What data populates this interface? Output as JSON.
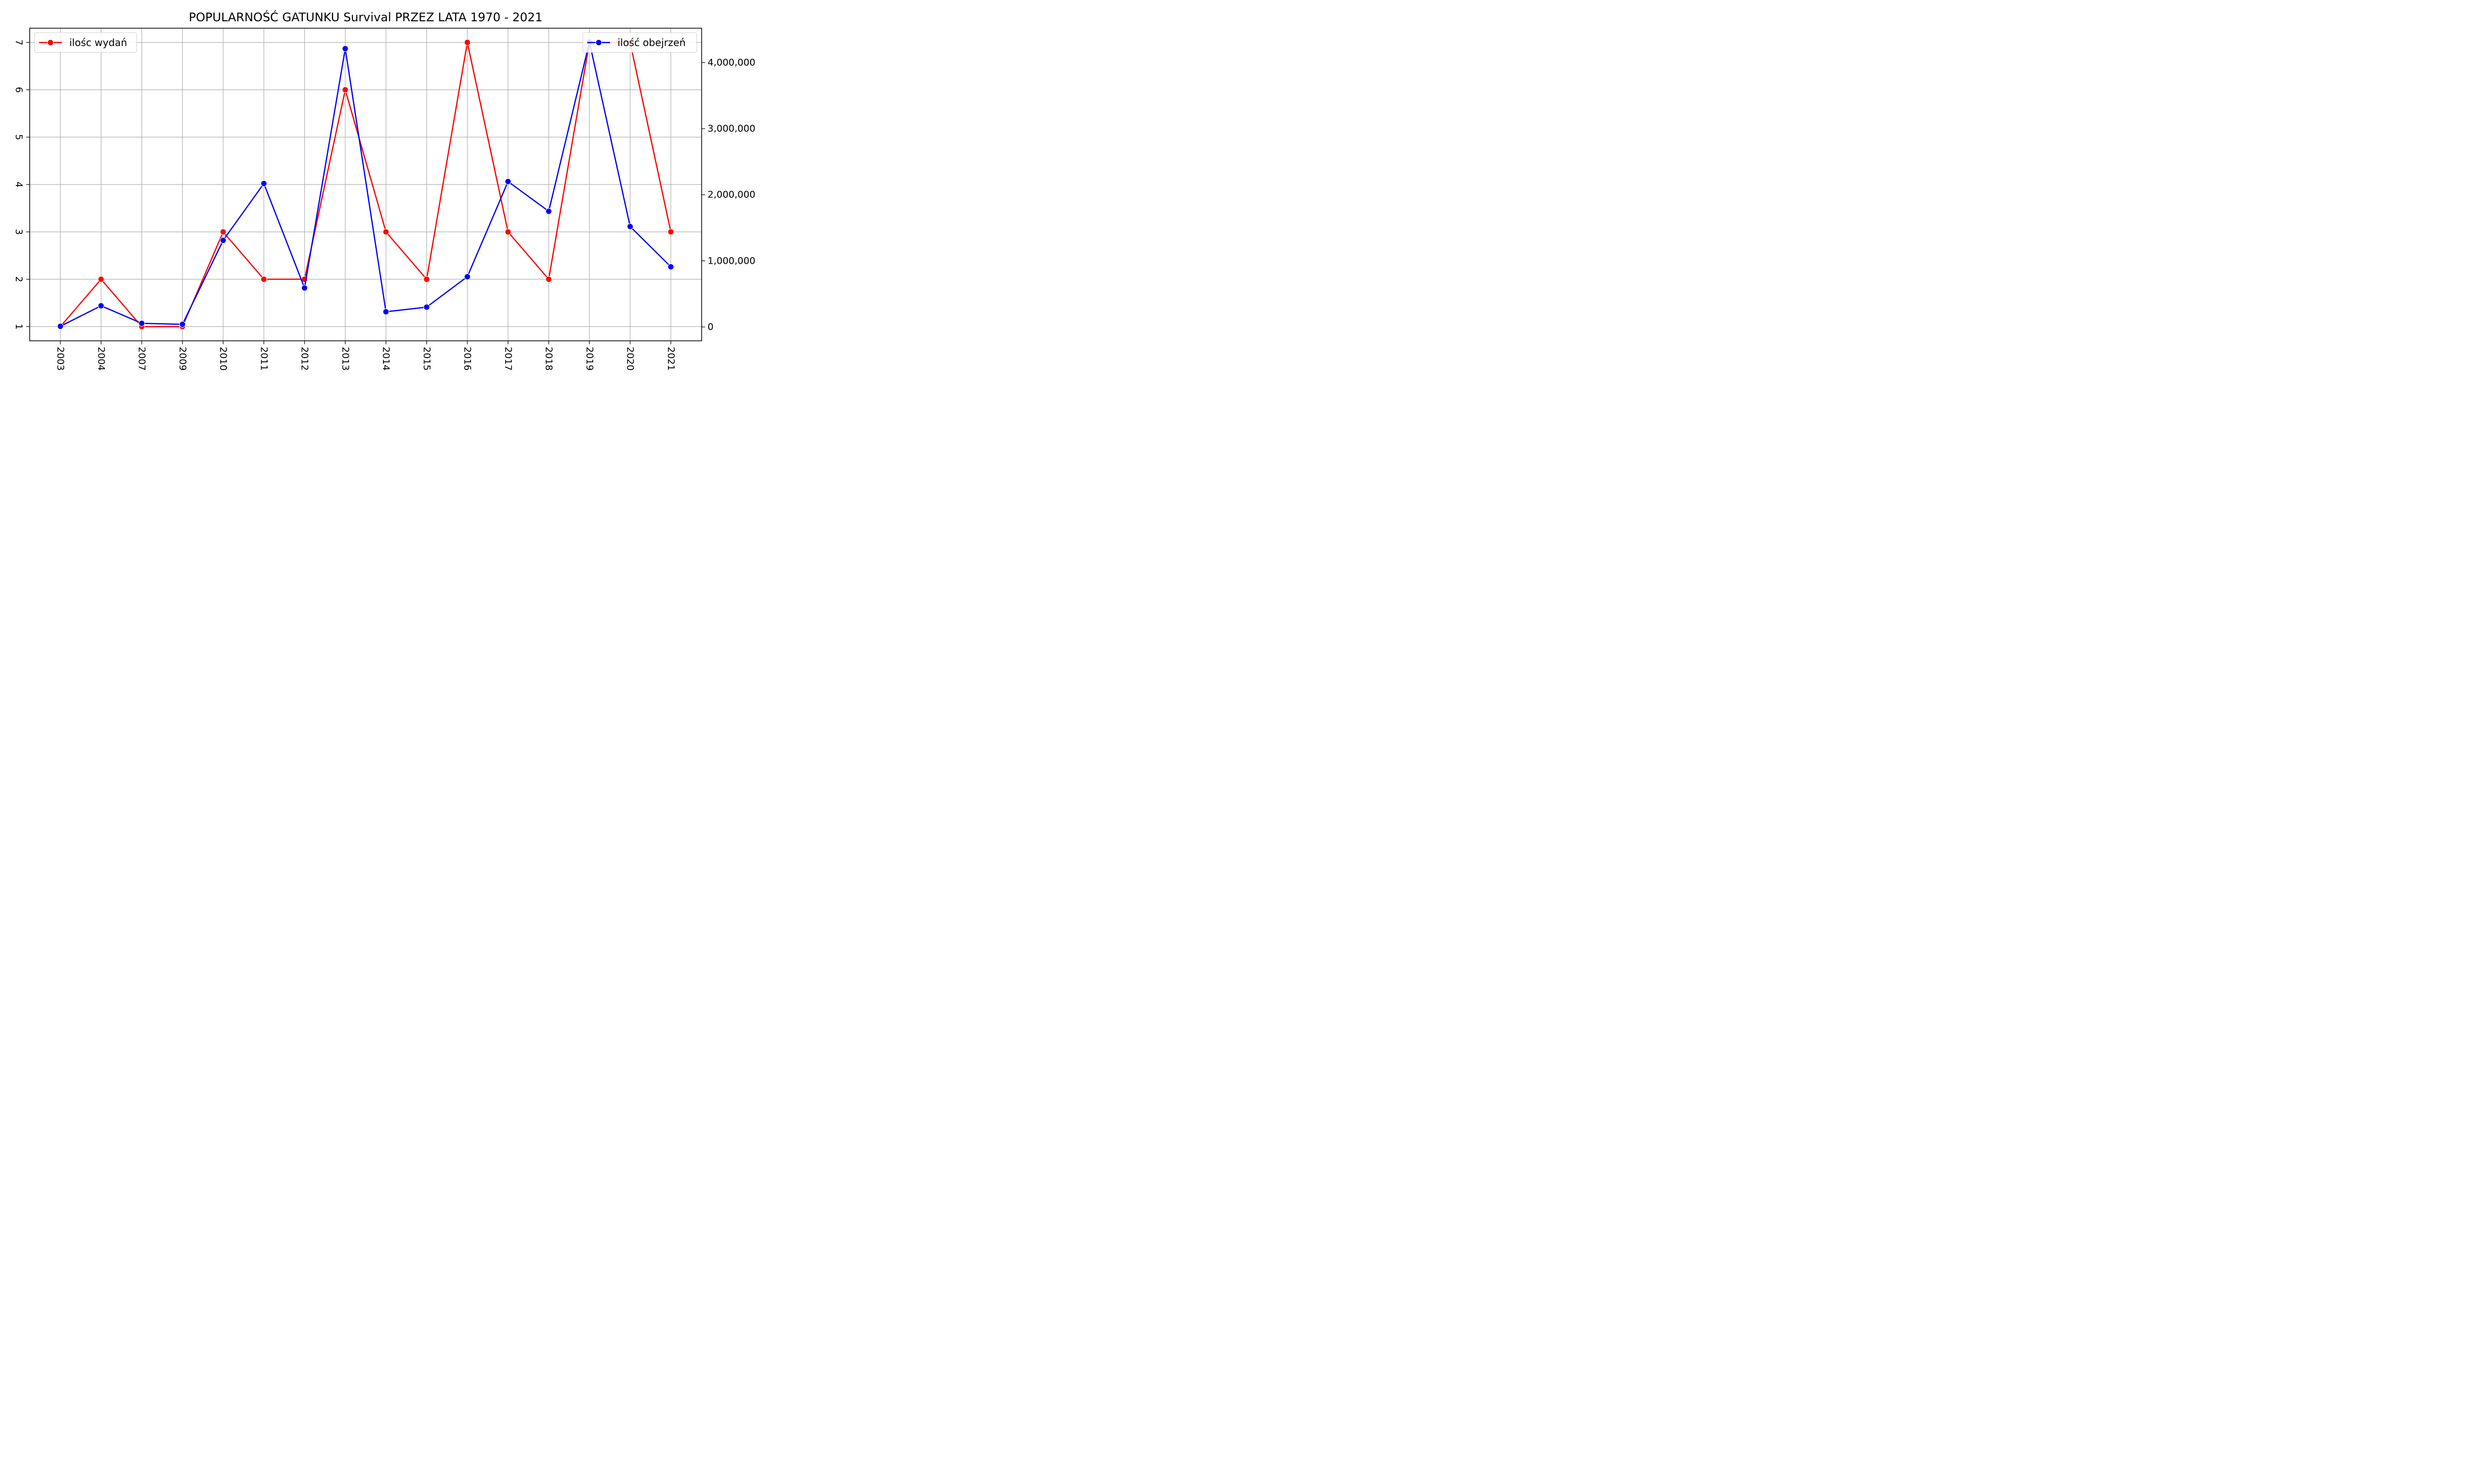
{
  "chart_data": {
    "type": "line",
    "title": "POPULARNOŚĆ GATUNKU Survival PRZEZ LATA 1970 - 2021",
    "xlabel": "",
    "ylabel_left": "",
    "ylabel_right": "",
    "categories": [
      "2003",
      "2004",
      "2007",
      "2009",
      "2010",
      "2011",
      "2012",
      "2013",
      "2014",
      "2015",
      "2016",
      "2017",
      "2018",
      "2019",
      "2020",
      "2021"
    ],
    "series": [
      {
        "name": "ilośc wydań",
        "axis": "left",
        "color": "#ff0000",
        "values": [
          1,
          2,
          1,
          1,
          3,
          2,
          2,
          6,
          3,
          2,
          7,
          3,
          2,
          7,
          7,
          3
        ]
      },
      {
        "name": "ilość obejrzeń",
        "axis": "right",
        "color": "#0000ff",
        "values": [
          10000,
          320000,
          55000,
          40000,
          1310000,
          2170000,
          590000,
          4210000,
          230000,
          300000,
          760000,
          2200000,
          1750000,
          4310000,
          1520000,
          910000
        ]
      }
    ],
    "y_left": {
      "ylim": [
        0.7,
        7.3
      ],
      "ticks": [
        "1",
        "2",
        "3",
        "4",
        "5",
        "6",
        "7"
      ]
    },
    "y_right": {
      "ylim": [
        -210000,
        4520000
      ],
      "ticks": [
        "0",
        "1,000,000",
        "2,000,000",
        "3,000,000",
        "4,000,000"
      ]
    },
    "grid": true,
    "legend_left_placement": "top-left",
    "legend_right_placement": "top-right"
  }
}
